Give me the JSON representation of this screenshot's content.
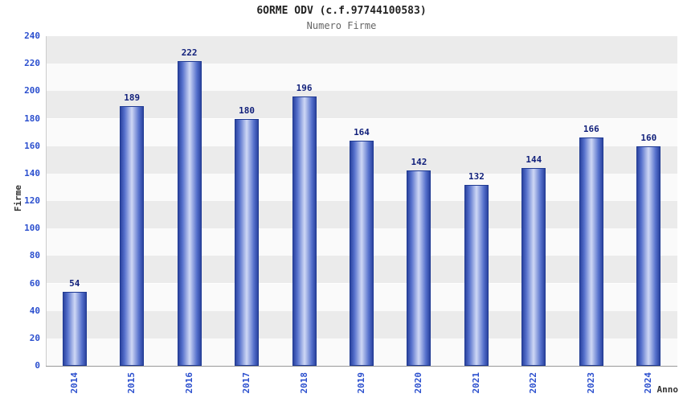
{
  "chart_data": {
    "type": "bar",
    "title": "6ORME ODV (c.f.97744100583)",
    "subtitle": "Numero Firme",
    "categories": [
      "2014",
      "2015",
      "2016",
      "2017",
      "2018",
      "2019",
      "2020",
      "2021",
      "2022",
      "2023",
      "2024"
    ],
    "values": [
      54,
      189,
      222,
      180,
      196,
      164,
      142,
      132,
      144,
      166,
      160
    ],
    "xlabel": "Anno",
    "ylabel": "Firme",
    "ylim": [
      0,
      240
    ],
    "ytick_step": 20,
    "grid": "horizontal-alternating-bands",
    "legend": "none",
    "colors": {
      "bar_edge": "#1f3a93",
      "bar_dark": "#2c44a0",
      "bar_mid": "#5570cc",
      "bar_light": "#cfd8f5",
      "tick_label": "#2b4fce",
      "value_label": "#101f7a",
      "band_gray": "#ebebeb",
      "band_white": "#fafafa",
      "title": "#222222",
      "subtitle": "#666666"
    }
  }
}
